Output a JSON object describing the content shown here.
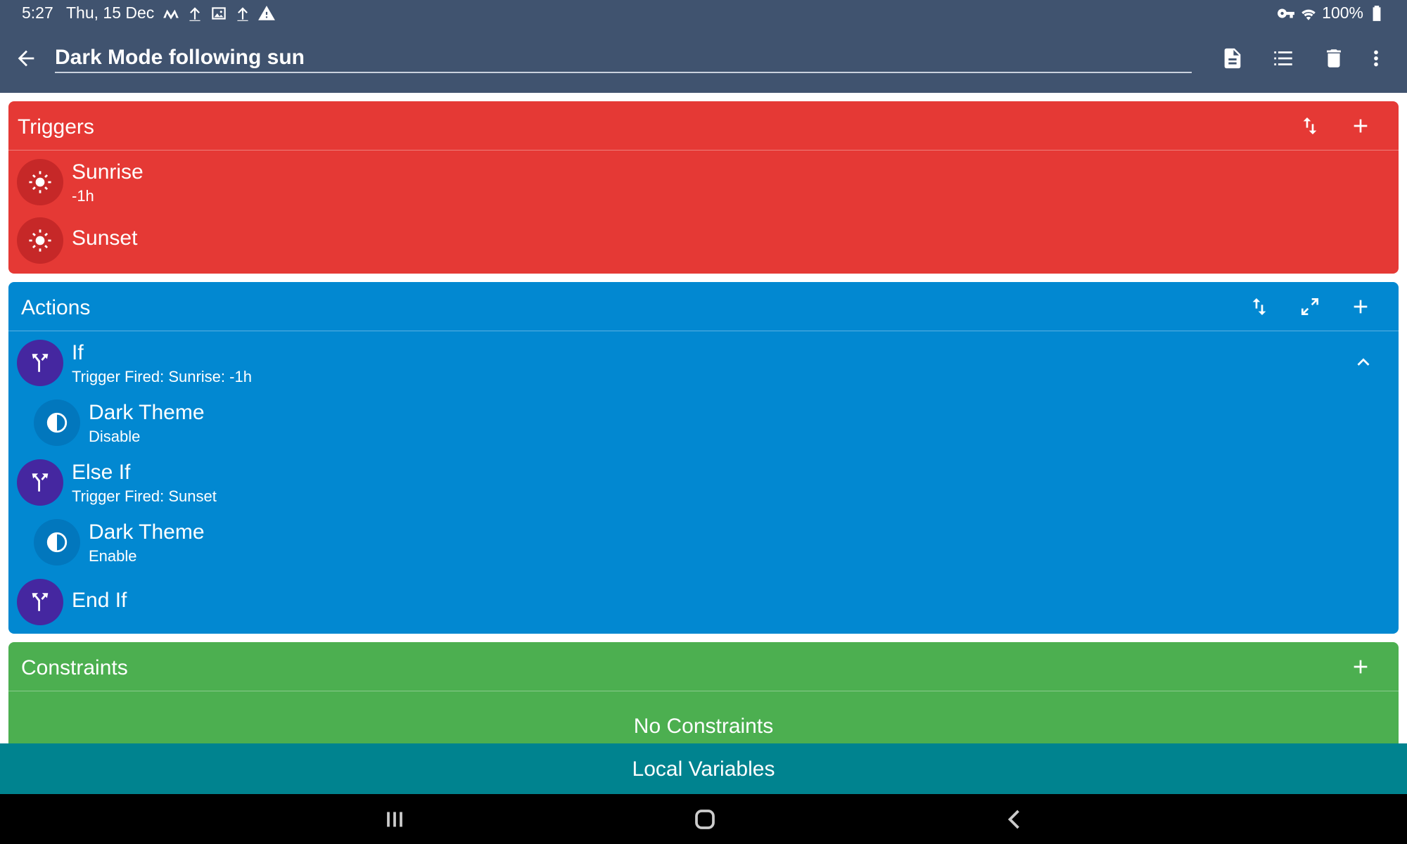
{
  "status_bar": {
    "time": "5:27",
    "date": "Thu, 15 Dec",
    "battery": "100%",
    "left_icons": [
      "macrodroid-icon",
      "upload-icon",
      "image-icon",
      "upload-icon",
      "warning-icon"
    ],
    "right_icons": [
      "vpn-key-icon",
      "wifi-icon",
      "battery-icon"
    ]
  },
  "app_bar": {
    "macro_name": "Dark Mode following sun",
    "actions": [
      "description-icon",
      "list-icon",
      "delete-icon",
      "more-vert-icon"
    ]
  },
  "triggers": {
    "title": "Triggers",
    "color": "#e53935",
    "items": [
      {
        "name": "Sunrise",
        "detail": "-1h",
        "icon": "sun-icon"
      },
      {
        "name": "Sunset",
        "detail": "",
        "icon": "sun-icon"
      }
    ]
  },
  "actions": {
    "title": "Actions",
    "color": "#0288d1",
    "items": [
      {
        "name": "If",
        "detail": "Trigger Fired: Sunrise: -1h",
        "icon": "branch-icon"
      },
      {
        "name": "Dark Theme",
        "detail": "Disable",
        "icon": "contrast-icon"
      },
      {
        "name": "Else If",
        "detail": "Trigger Fired: Sunset",
        "icon": "branch-icon"
      },
      {
        "name": "Dark Theme",
        "detail": "Enable",
        "icon": "contrast-icon"
      },
      {
        "name": "End If",
        "detail": "",
        "icon": "branch-icon"
      }
    ]
  },
  "constraints": {
    "title": "Constraints",
    "color": "#4caf50",
    "empty_text": "No Constraints"
  },
  "local_variables": {
    "label": "Local Variables",
    "color": "#00838f"
  },
  "nav_bar": {
    "buttons": [
      "recents-icon",
      "home-icon",
      "back-icon"
    ]
  }
}
